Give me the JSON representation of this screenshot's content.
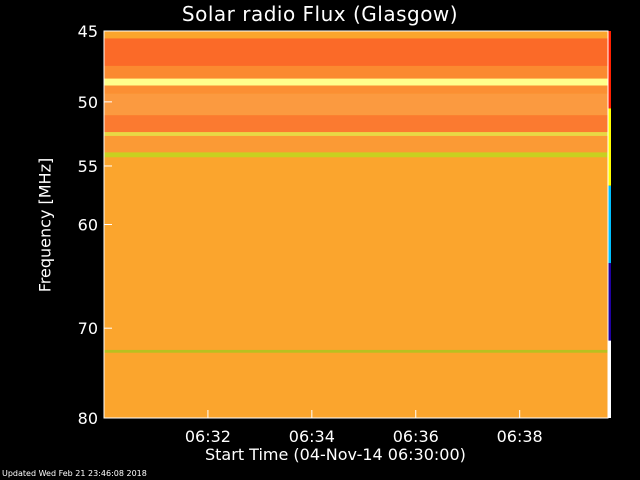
{
  "chart_data": {
    "type": "heatmap",
    "title": "Solar radio Flux (Glasgow)",
    "xlabel": "Start Time (04-Nov-14 06:30:00)",
    "ylabel": "Frequency [MHz]",
    "y_ticks": [
      45,
      50,
      55,
      60,
      70,
      80
    ],
    "y_scale": "log",
    "ylim": [
      45,
      80
    ],
    "y_direction": "increasing-downward",
    "x_ticks": [
      "06:32",
      "06:34",
      "06:36",
      "06:38"
    ],
    "x_tick_minutes": [
      32,
      34,
      36,
      38
    ],
    "xlim_minutes": [
      30,
      39.7
    ],
    "base_color": "#fba52d",
    "bands": [
      {
        "f1": 45.5,
        "f2": 47.4,
        "color": "#fb6a28"
      },
      {
        "f1": 47.4,
        "f2": 48.3,
        "color": "#fb8a30"
      },
      {
        "f1": 48.3,
        "f2": 48.8,
        "color": "#ffff8c"
      },
      {
        "f1": 48.8,
        "f2": 49.4,
        "color": "#fb8f33"
      },
      {
        "f1": 49.4,
        "f2": 51.0,
        "color": "#fb9a40"
      },
      {
        "f1": 51.0,
        "f2": 52.3,
        "color": "#fb7a30"
      },
      {
        "f1": 52.3,
        "f2": 52.6,
        "color": "#e8d845"
      },
      {
        "f1": 52.6,
        "f2": 53.9,
        "color": "#fb9a35"
      },
      {
        "f1": 53.9,
        "f2": 54.3,
        "color": "#c8d020"
      },
      {
        "f1": 54.3,
        "f2": 80.0,
        "color": "#fba52d"
      },
      {
        "f1": 72.3,
        "f2": 72.6,
        "color": "#b8c020"
      }
    ],
    "colorbar_colors": [
      "#ff2000",
      "#ffff00",
      "#00c0ff",
      "#2000a0",
      "#ffffff"
    ]
  },
  "footer": "Updated Wed Feb 21 23:46:08 2018"
}
